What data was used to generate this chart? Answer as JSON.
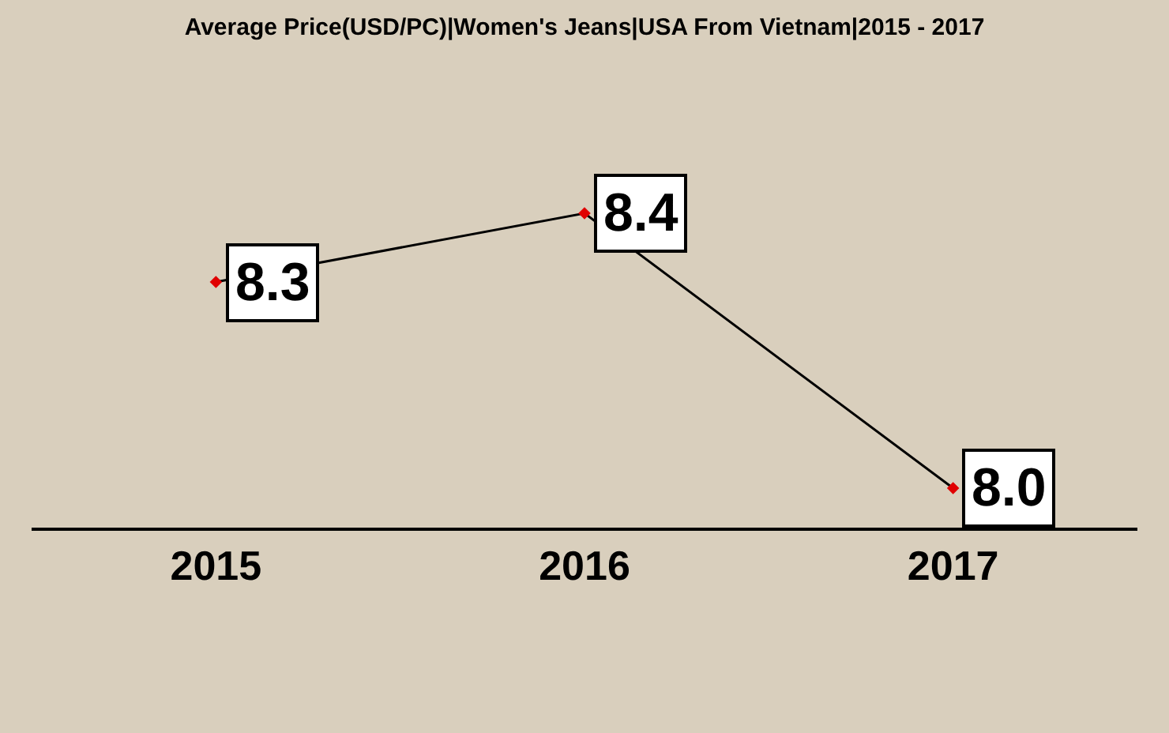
{
  "chart_data": {
    "type": "line",
    "title": "Average Price(USD/PC)|Women's Jeans|USA From Vietnam|2015 - 2017",
    "categories": [
      "2015",
      "2016",
      "2017"
    ],
    "series": [
      {
        "color": "#000000",
        "values": [
          8.3,
          8.4,
          8.0
        ],
        "value_labels": [
          "8.3",
          "8.4",
          "8.0"
        ]
      }
    ],
    "marker": "diamond",
    "line_style": "solid",
    "grid": false,
    "legend": false
  }
}
